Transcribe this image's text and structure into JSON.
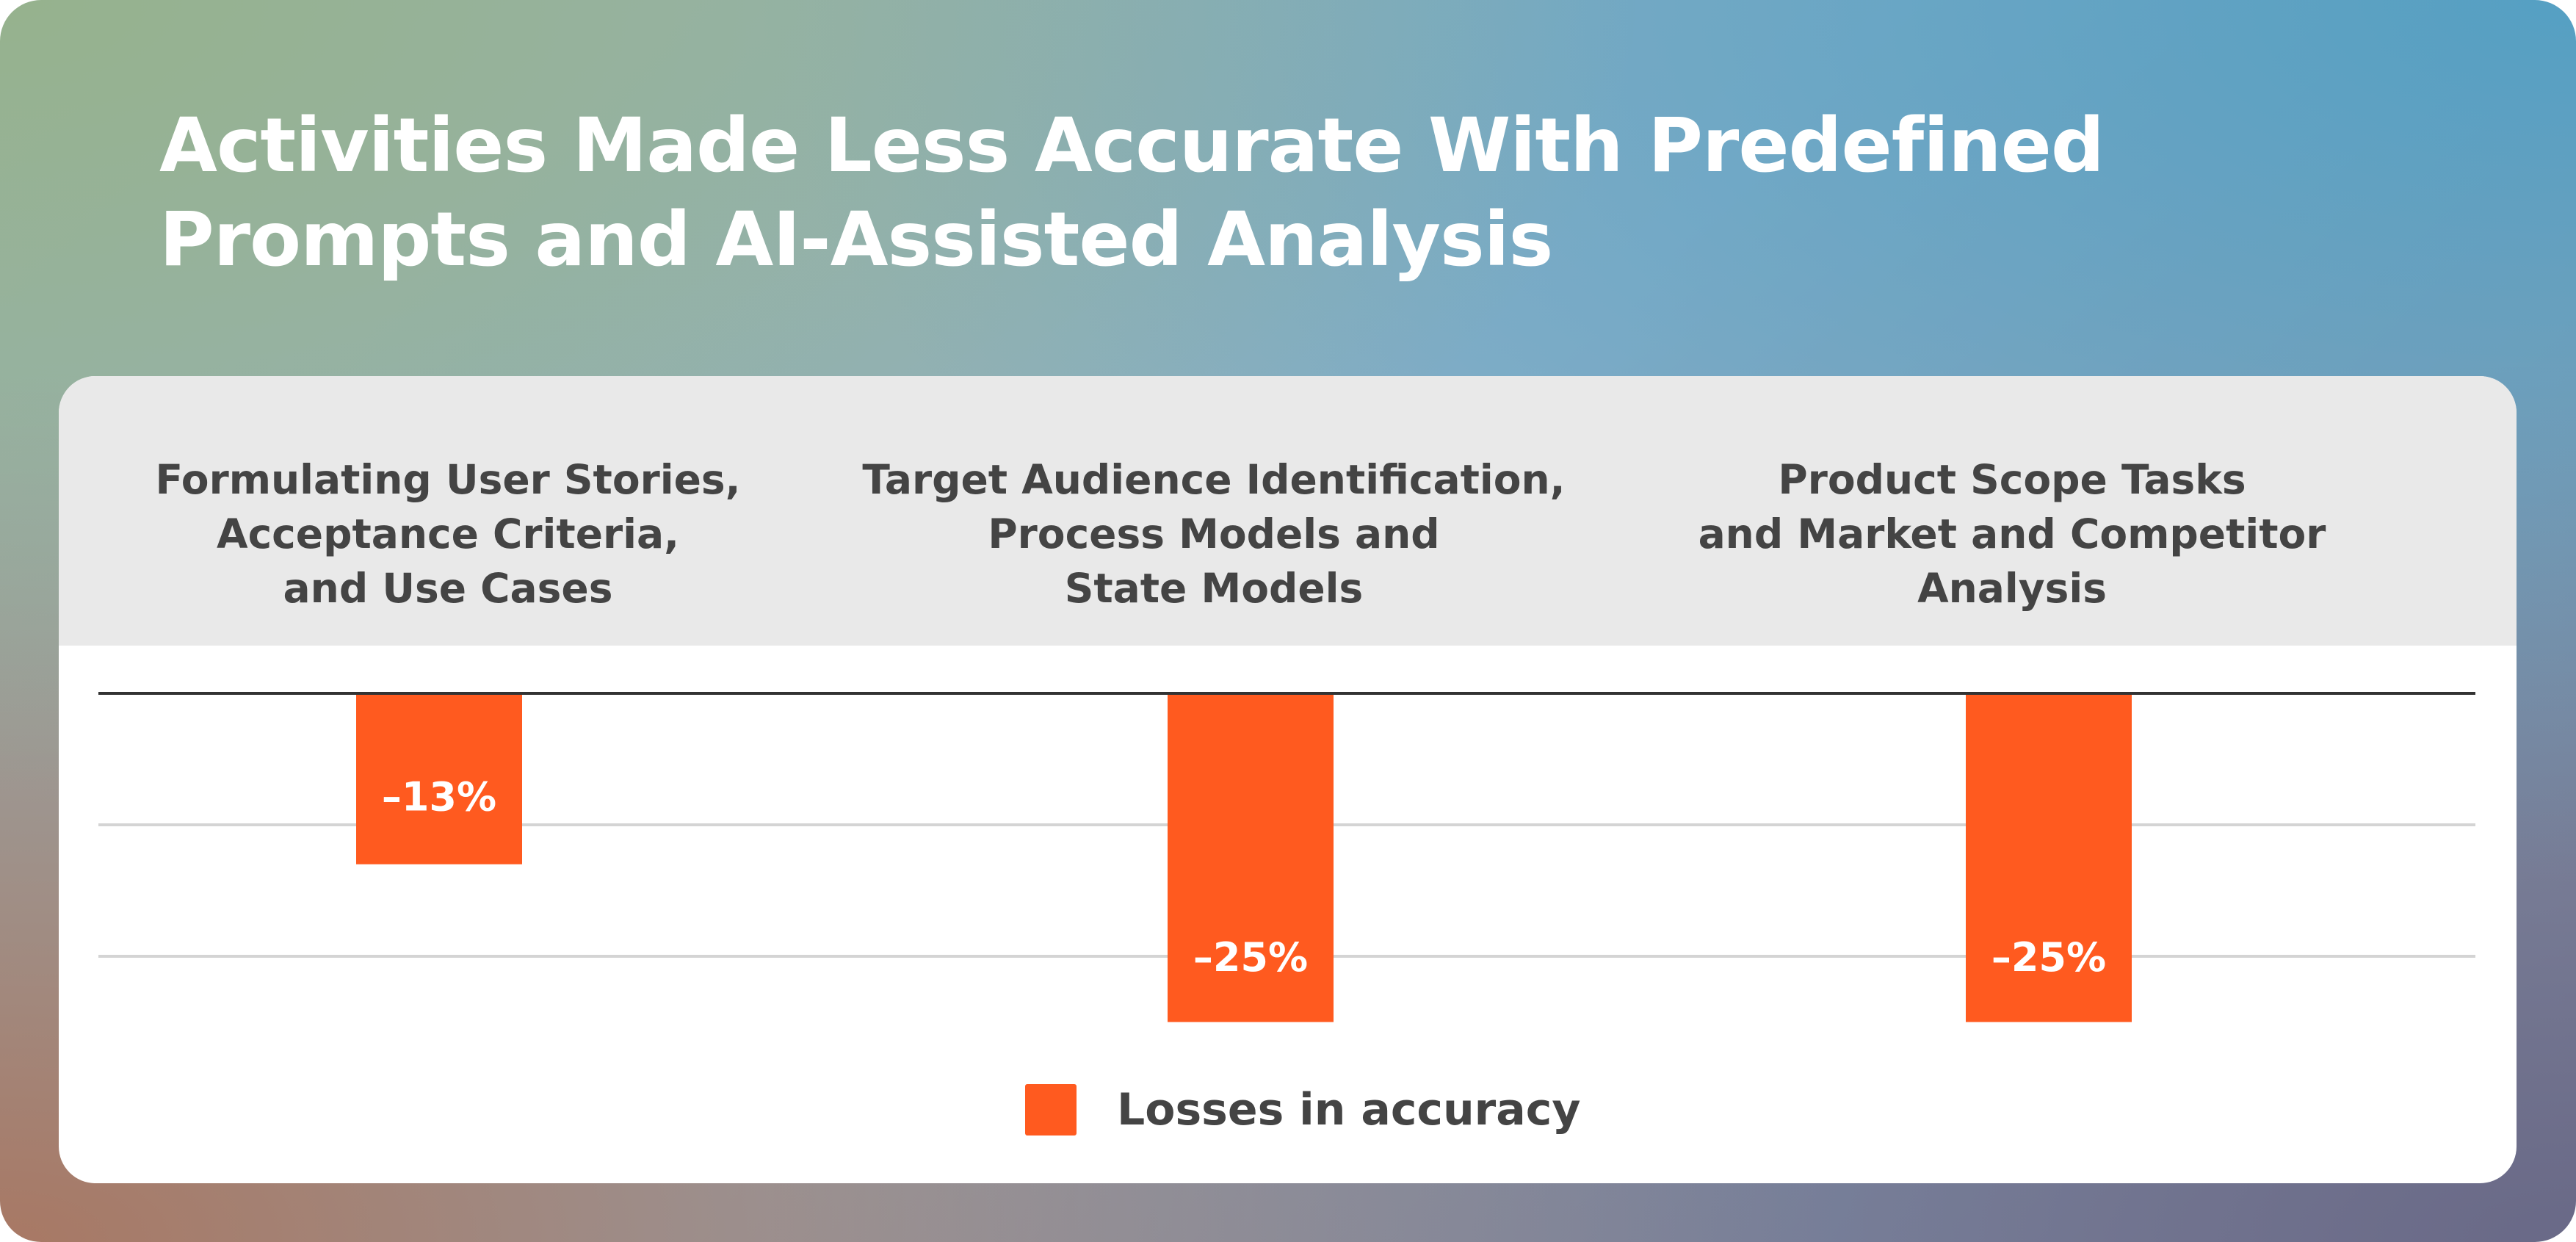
{
  "title_lines": [
    "Activities Made Less Accurate With Predefined",
    "Prompts and AI-Assisted Analysis"
  ],
  "colors": {
    "bar": "#ff5a1f",
    "text": "#444444",
    "header_bg": "#e9e9e9"
  },
  "chart_data": {
    "type": "bar",
    "title": "Activities Made Less Accurate With Predefined Prompts and AI-Assisted Analysis",
    "categories": [
      [
        "Formulating User Stories,",
        "Acceptance Criteria,",
        "and Use Cases"
      ],
      [
        "Target Audience Identification,",
        "Process Models and",
        "State Models"
      ],
      [
        "Product Scope Tasks",
        "and Market and Competitor",
        "Analysis"
      ]
    ],
    "series": [
      {
        "name": "Losses in accuracy",
        "values": [
          -13,
          -25,
          -25
        ]
      }
    ],
    "data_labels": [
      "–13%",
      "–25%",
      "–25%"
    ],
    "ylim": [
      -26.5,
      0
    ],
    "gridlines": [
      0,
      -10,
      -20
    ],
    "grid": true,
    "legend": {
      "position": "bottom-center",
      "label": "Losses in accuracy"
    },
    "xlabel": "",
    "ylabel": ""
  }
}
